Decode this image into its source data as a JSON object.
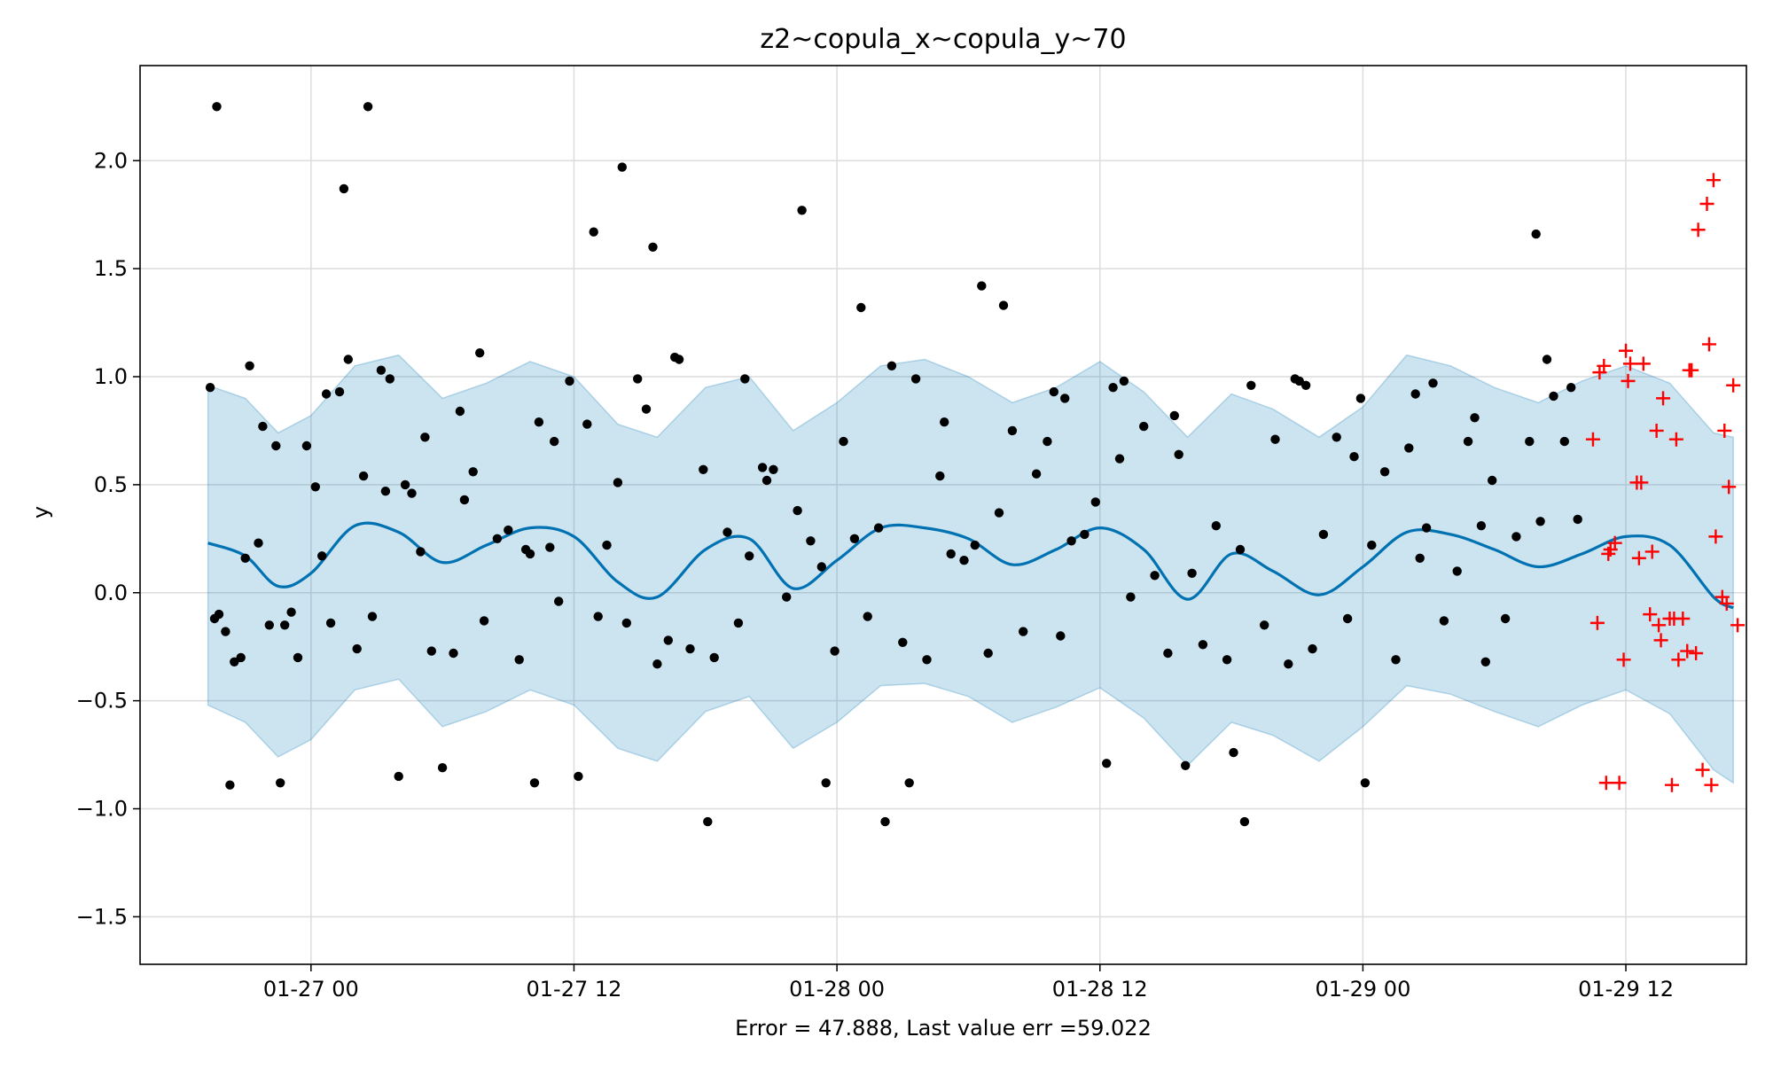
{
  "chart_data": {
    "type": "line",
    "title": "z2~copula_x~copula_y~70",
    "xlabel": "Error = 47.888, Last value err =59.022",
    "ylabel": "y",
    "x_tick_labels": [
      "01-27 00",
      "01-27 12",
      "01-28 00",
      "01-28 12",
      "01-29 00",
      "01-29 12"
    ],
    "x_tick_hours": [
      0,
      12,
      24,
      36,
      48,
      60
    ],
    "xlim_hours": [
      -7.8,
      65.5
    ],
    "y_ticks": [
      -1.5,
      -1.0,
      -0.5,
      0.0,
      0.5,
      1.0,
      1.5,
      2.0
    ],
    "y_tick_labels": [
      "−1.5",
      "−1.0",
      "−0.5",
      "0.0",
      "0.5",
      "1.0",
      "1.5",
      "2.0"
    ],
    "ylim": [
      -1.72,
      2.44
    ],
    "grid": true,
    "colors": {
      "forecast_line": "#0072B2",
      "interval_fill": "#0072B2",
      "observed": "#000000",
      "future": "#ff0000"
    },
    "forecast": {
      "hours": [
        -4.7,
        -3,
        -1.5,
        0,
        2,
        4,
        6,
        8,
        10,
        12,
        14,
        15.8,
        18,
        20,
        22,
        24,
        26,
        28,
        30,
        32,
        34,
        36,
        38,
        40,
        42,
        43.9,
        46,
        48,
        50,
        52,
        54,
        56,
        58,
        60,
        62,
        64,
        64.9
      ],
      "values": [
        0.23,
        0.17,
        0.03,
        0.09,
        0.31,
        0.28,
        0.14,
        0.22,
        0.3,
        0.26,
        0.05,
        -0.02,
        0.2,
        0.25,
        0.02,
        0.15,
        0.3,
        0.3,
        0.25,
        0.13,
        0.2,
        0.3,
        0.2,
        -0.03,
        0.18,
        0.1,
        -0.01,
        0.12,
        0.28,
        0.27,
        0.2,
        0.12,
        0.18,
        0.26,
        0.22,
        -0.02,
        -0.07
      ]
    },
    "interval": {
      "hours": [
        -4.7,
        -3,
        -1.5,
        0,
        2,
        4,
        6,
        8,
        10,
        12,
        14,
        15.8,
        18,
        20,
        22,
        24,
        26,
        28,
        30,
        32,
        34,
        36,
        38,
        40,
        42,
        43.9,
        46,
        48,
        50,
        52,
        54,
        56,
        58,
        60,
        62,
        64,
        64.9
      ],
      "upper": [
        0.96,
        0.9,
        0.74,
        0.82,
        1.05,
        1.1,
        0.9,
        0.97,
        1.07,
        1.0,
        0.78,
        0.72,
        0.95,
        1.0,
        0.75,
        0.88,
        1.05,
        1.08,
        1.0,
        0.88,
        0.95,
        1.07,
        0.93,
        0.72,
        0.92,
        0.85,
        0.72,
        0.86,
        1.1,
        1.05,
        0.95,
        0.88,
        0.98,
        1.05,
        0.97,
        0.74,
        0.72
      ],
      "lower": [
        -0.52,
        -0.6,
        -0.76,
        -0.68,
        -0.45,
        -0.4,
        -0.62,
        -0.55,
        -0.45,
        -0.52,
        -0.72,
        -0.78,
        -0.55,
        -0.48,
        -0.72,
        -0.6,
        -0.43,
        -0.42,
        -0.48,
        -0.6,
        -0.53,
        -0.44,
        -0.58,
        -0.8,
        -0.6,
        -0.66,
        -0.78,
        -0.62,
        -0.43,
        -0.47,
        -0.55,
        -0.62,
        -0.52,
        -0.45,
        -0.56,
        -0.82,
        -0.88
      ]
    },
    "observed": {
      "hours": [
        -4.6,
        -4.2,
        -4.4,
        -3.9,
        -3.5,
        -3.2,
        -3.0,
        -2.8,
        -2.4,
        -1.9,
        -1.6,
        -1.2,
        -0.9,
        -0.6,
        -0.2,
        0.2,
        0.5,
        0.9,
        1.3,
        1.7,
        2.1,
        2.4,
        2.8,
        3.2,
        3.6,
        4.0,
        4.3,
        4.6,
        5.0,
        5.5,
        6.0,
        6.5,
        7.0,
        7.4,
        7.9,
        8.5,
        9.0,
        9.5,
        10.0,
        10.4,
        10.9,
        11.3,
        11.8,
        12.2,
        12.6,
        13.1,
        13.5,
        14.0,
        14.4,
        14.9,
        15.3,
        15.8,
        16.3,
        16.8,
        17.3,
        17.9,
        18.4,
        19.0,
        19.5,
        20.0,
        20.6,
        21.1,
        21.7,
        22.2,
        22.8,
        23.3,
        23.9,
        24.3,
        24.8,
        25.4,
        25.9,
        26.5,
        27.0,
        27.6,
        28.1,
        28.7,
        29.2,
        29.8,
        30.3,
        30.9,
        31.4,
        32.0,
        32.5,
        33.1,
        33.6,
        34.2,
        34.7,
        35.3,
        35.8,
        36.3,
        36.9,
        37.4,
        38.0,
        38.5,
        39.1,
        39.6,
        40.2,
        40.7,
        41.3,
        41.8,
        42.4,
        42.9,
        43.5,
        44.0,
        44.6,
        45.1,
        45.7,
        46.2,
        46.8,
        47.3,
        47.9,
        48.4,
        49.0,
        49.5,
        50.1,
        50.6,
        51.2,
        51.7,
        52.3,
        52.8,
        53.4,
        53.9,
        54.5,
        55.0,
        55.6,
        56.1,
        56.7,
        57.2,
        57.8,
        -4.3,
        -2.2,
        1.5,
        3.4,
        6.8,
        9.8,
        11.1,
        14.2,
        16.6,
        19.8,
        22.4,
        25.1,
        27.3,
        30.6,
        33.9,
        36.6,
        39.4,
        42.1,
        44.9,
        47.6,
        50.4,
        53.1,
        55.9,
        57.5,
        -3.7,
        -1.4,
        0.7,
        2.6,
        5.2,
        7.7,
        10.2,
        12.9,
        15.6,
        18.1,
        20.8,
        23.5,
        26.2,
        28.9,
        31.6,
        34.4,
        37.1,
        39.9,
        42.6,
        45.4,
        48.1,
        50.9,
        53.6,
        56.4
      ],
      "values": [
        0.95,
        -0.1,
        -0.12,
        -0.18,
        -0.32,
        -0.3,
        0.16,
        1.05,
        0.23,
        -0.15,
        0.68,
        -0.15,
        -0.09,
        -0.3,
        0.68,
        0.49,
        0.17,
        -0.14,
        0.93,
        1.08,
        -0.26,
        0.54,
        -0.11,
        1.03,
        0.99,
        -0.85,
        0.5,
        0.46,
        0.19,
        -0.27,
        -0.81,
        -0.28,
        0.43,
        0.56,
        -0.13,
        0.25,
        0.29,
        -0.31,
        0.18,
        0.79,
        0.21,
        -0.04,
        0.98,
        -0.85,
        0.78,
        -0.11,
        0.22,
        0.51,
        -0.14,
        0.99,
        0.85,
        -0.33,
        -0.22,
        1.08,
        -0.26,
        0.57,
        -0.3,
        0.28,
        -0.14,
        0.17,
        0.58,
        0.57,
        -0.02,
        0.38,
        0.24,
        0.12,
        -0.27,
        0.7,
        0.25,
        -0.11,
        0.3,
        1.05,
        -0.23,
        0.99,
        -0.31,
        0.54,
        0.18,
        0.15,
        0.22,
        -0.28,
        0.37,
        0.75,
        -0.18,
        0.55,
        0.7,
        -0.2,
        0.24,
        0.27,
        0.42,
        -0.79,
        0.62,
        -0.02,
        0.77,
        0.08,
        -0.28,
        0.64,
        0.09,
        -0.24,
        0.31,
        -0.31,
        0.2,
        0.96,
        -0.15,
        0.71,
        -0.33,
        0.98,
        -0.26,
        0.27,
        0.72,
        -0.12,
        0.9,
        0.22,
        0.56,
        -0.31,
        0.67,
        0.16,
        0.97,
        -0.13,
        0.1,
        0.7,
        0.31,
        0.52,
        -0.12,
        0.26,
        0.7,
        0.33,
        0.91,
        0.7,
        0.34,
        2.25,
        0.77,
        1.87,
        0.47,
        0.84,
        0.2,
        0.7,
        1.97,
        1.09,
        0.99,
        1.77,
        1.32,
        -0.88,
        1.42,
        0.93,
        0.95,
        0.82,
        -0.74,
        0.99,
        0.63,
        0.92,
        0.81,
        1.66,
        0.95,
        -0.89,
        -0.88,
        0.92,
        2.25,
        0.72,
        1.11,
        -0.88,
        1.67,
        1.6,
        -1.06,
        0.52,
        -0.88,
        -1.06,
        0.79,
        1.33,
        0.9,
        0.98,
        -0.8,
        -1.06,
        0.96,
        -0.88,
        0.3,
        -0.32,
        1.08
      ]
    },
    "future": {
      "hours": [
        58.5,
        58.8,
        59.1,
        59.3,
        59.7,
        60.0,
        60.2,
        60.5,
        60.8,
        61.1,
        61.4,
        61.7,
        62.0,
        62.3,
        62.6,
        62.9,
        63.2,
        63.5,
        63.8,
        64.1,
        64.4,
        64.7,
        64.9,
        65.1,
        58.7,
        59.0,
        59.5,
        60.1,
        60.6,
        61.2,
        61.6,
        62.1,
        62.4,
        62.8,
        63.3,
        63.7,
        64.0,
        64.5,
        59.2,
        59.9,
        60.7,
        61.5,
        62.2,
        63.0,
        63.9,
        64.6
      ],
      "values": [
        0.71,
        1.02,
        -0.88,
        0.2,
        -0.88,
        1.12,
        1.06,
        0.51,
        1.06,
        -0.1,
        0.75,
        0.9,
        -0.12,
        0.71,
        -0.12,
        1.03,
        -0.28,
        -0.82,
        1.15,
        0.26,
        -0.02,
        0.49,
        0.96,
        -0.15,
        -0.14,
        1.05,
        0.23,
        0.98,
        0.16,
        0.19,
        -0.22,
        -0.89,
        -0.31,
        -0.27,
        1.68,
        1.8,
        1.91,
        0.75,
        0.18,
        -0.31,
        0.51,
        -0.15,
        -0.12,
        1.03,
        -0.89,
        -0.05
      ]
    }
  }
}
